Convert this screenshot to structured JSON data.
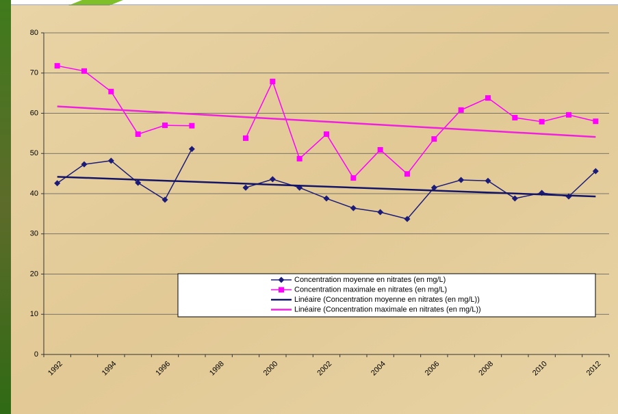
{
  "chart_data": {
    "type": "line",
    "categories": [
      "1992",
      null,
      "1994",
      null,
      "1996",
      null,
      "1998",
      null,
      "2000",
      null,
      "2002",
      null,
      "2004",
      null,
      "2006",
      null,
      "2008",
      null,
      "2010",
      null,
      "2012"
    ],
    "series": [
      {
        "name": "Concentration moyenne en nitrates (en mg/L)",
        "color": "#1c1c78",
        "marker": "diamond",
        "values": [
          42.6,
          47.3,
          48.2,
          42.7,
          38.5,
          51.1,
          null,
          41.5,
          43.6,
          41.5,
          38.8,
          36.4,
          35.4,
          33.7,
          41.5,
          43.4,
          43.2,
          38.8,
          40.2,
          39.3,
          45.6
        ]
      },
      {
        "name": "Concentration maximale en nitrates (en mg/L)",
        "color": "#ff00ff",
        "marker": "square",
        "values": [
          71.8,
          70.5,
          65.4,
          54.8,
          57,
          56.9,
          null,
          53.8,
          67.9,
          48.7,
          54.8,
          43.9,
          50.9,
          44.9,
          53.6,
          60.8,
          63.8,
          58.9,
          57.9,
          59.6,
          58
        ]
      },
      {
        "name": "Linéaire (Concentration moyenne en nitrates (en mg/L))",
        "color": "#141464",
        "marker": "none",
        "x": [
          "1992",
          "2012"
        ],
        "values": [
          44.2,
          39.3
        ]
      },
      {
        "name": "Linéaire (Concentration maximale en nitrates (en mg/L))",
        "color": "#ee22dd",
        "marker": "none",
        "x": [
          "1992",
          "2012"
        ],
        "values": [
          61.7,
          54.1
        ]
      }
    ],
    "ylim": [
      0,
      80
    ],
    "yticks": [
      0,
      10,
      20,
      30,
      40,
      50,
      60,
      70,
      80
    ],
    "grid": true
  }
}
